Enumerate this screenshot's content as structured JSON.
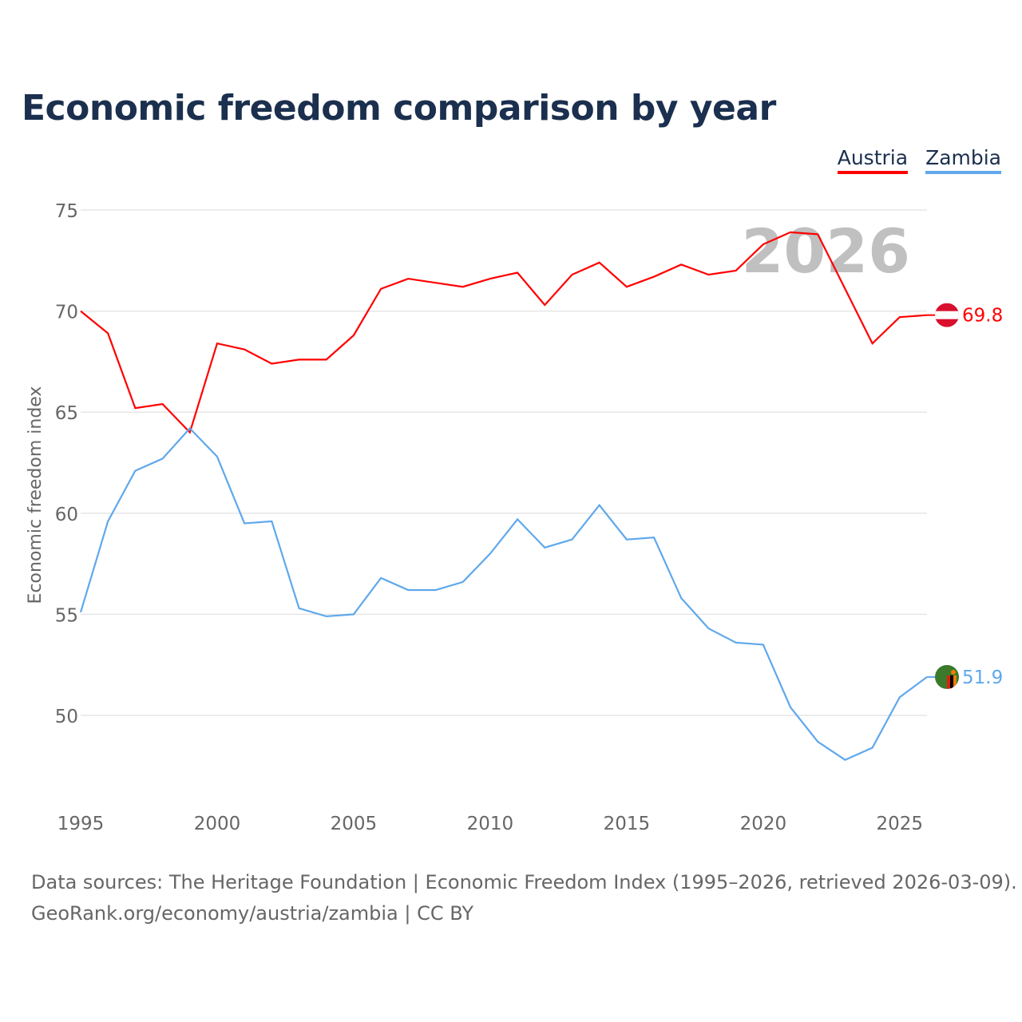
{
  "title": "Economic freedom comparison by year",
  "footer": {
    "line1": "Data sources: The Heritage Foundation | Economic Freedom Index (1995–2026, retrieved 2026-03-09).",
    "line2": "GeoRank.org/economy/austria/zambia | CC BY"
  },
  "chart_data": {
    "type": "line",
    "title": "Economic freedom comparison by year",
    "ylabel": "Economic freedom index",
    "xlabel": "",
    "year_label": "2026",
    "ylim": [
      45.5,
      75
    ],
    "xlim": [
      1995,
      2026
    ],
    "yticks": [
      50,
      55,
      60,
      65,
      70,
      75
    ],
    "xticks": [
      1995,
      2000,
      2005,
      2010,
      2015,
      2020,
      2025
    ],
    "grid": true,
    "legend_position": "top-right",
    "x": [
      1995,
      1996,
      1997,
      1998,
      1999,
      2000,
      2001,
      2002,
      2003,
      2004,
      2005,
      2006,
      2007,
      2008,
      2009,
      2010,
      2011,
      2012,
      2013,
      2014,
      2015,
      2016,
      2017,
      2018,
      2019,
      2020,
      2021,
      2022,
      2023,
      2024,
      2025,
      2026
    ],
    "series": [
      {
        "name": "Austria",
        "color": "#ff0000",
        "end_label": "69.8",
        "values": [
          70.0,
          68.9,
          65.2,
          65.4,
          64.0,
          68.4,
          68.1,
          67.4,
          67.6,
          67.6,
          68.8,
          71.1,
          71.6,
          71.4,
          71.2,
          71.6,
          71.9,
          70.3,
          71.8,
          72.4,
          71.2,
          71.7,
          72.3,
          71.8,
          72.0,
          73.3,
          73.9,
          73.8,
          71.1,
          68.4,
          69.7,
          69.8
        ]
      },
      {
        "name": "Zambia",
        "color": "#5fa8ec",
        "end_label": "51.9",
        "values": [
          55.1,
          59.6,
          62.1,
          62.7,
          64.2,
          62.8,
          59.5,
          59.6,
          55.3,
          54.9,
          55.0,
          56.8,
          56.2,
          56.2,
          56.6,
          58.0,
          59.7,
          58.3,
          58.7,
          60.4,
          58.7,
          58.8,
          55.8,
          54.3,
          53.6,
          53.5,
          50.4,
          48.7,
          47.8,
          48.4,
          50.9,
          51.9
        ]
      }
    ]
  }
}
